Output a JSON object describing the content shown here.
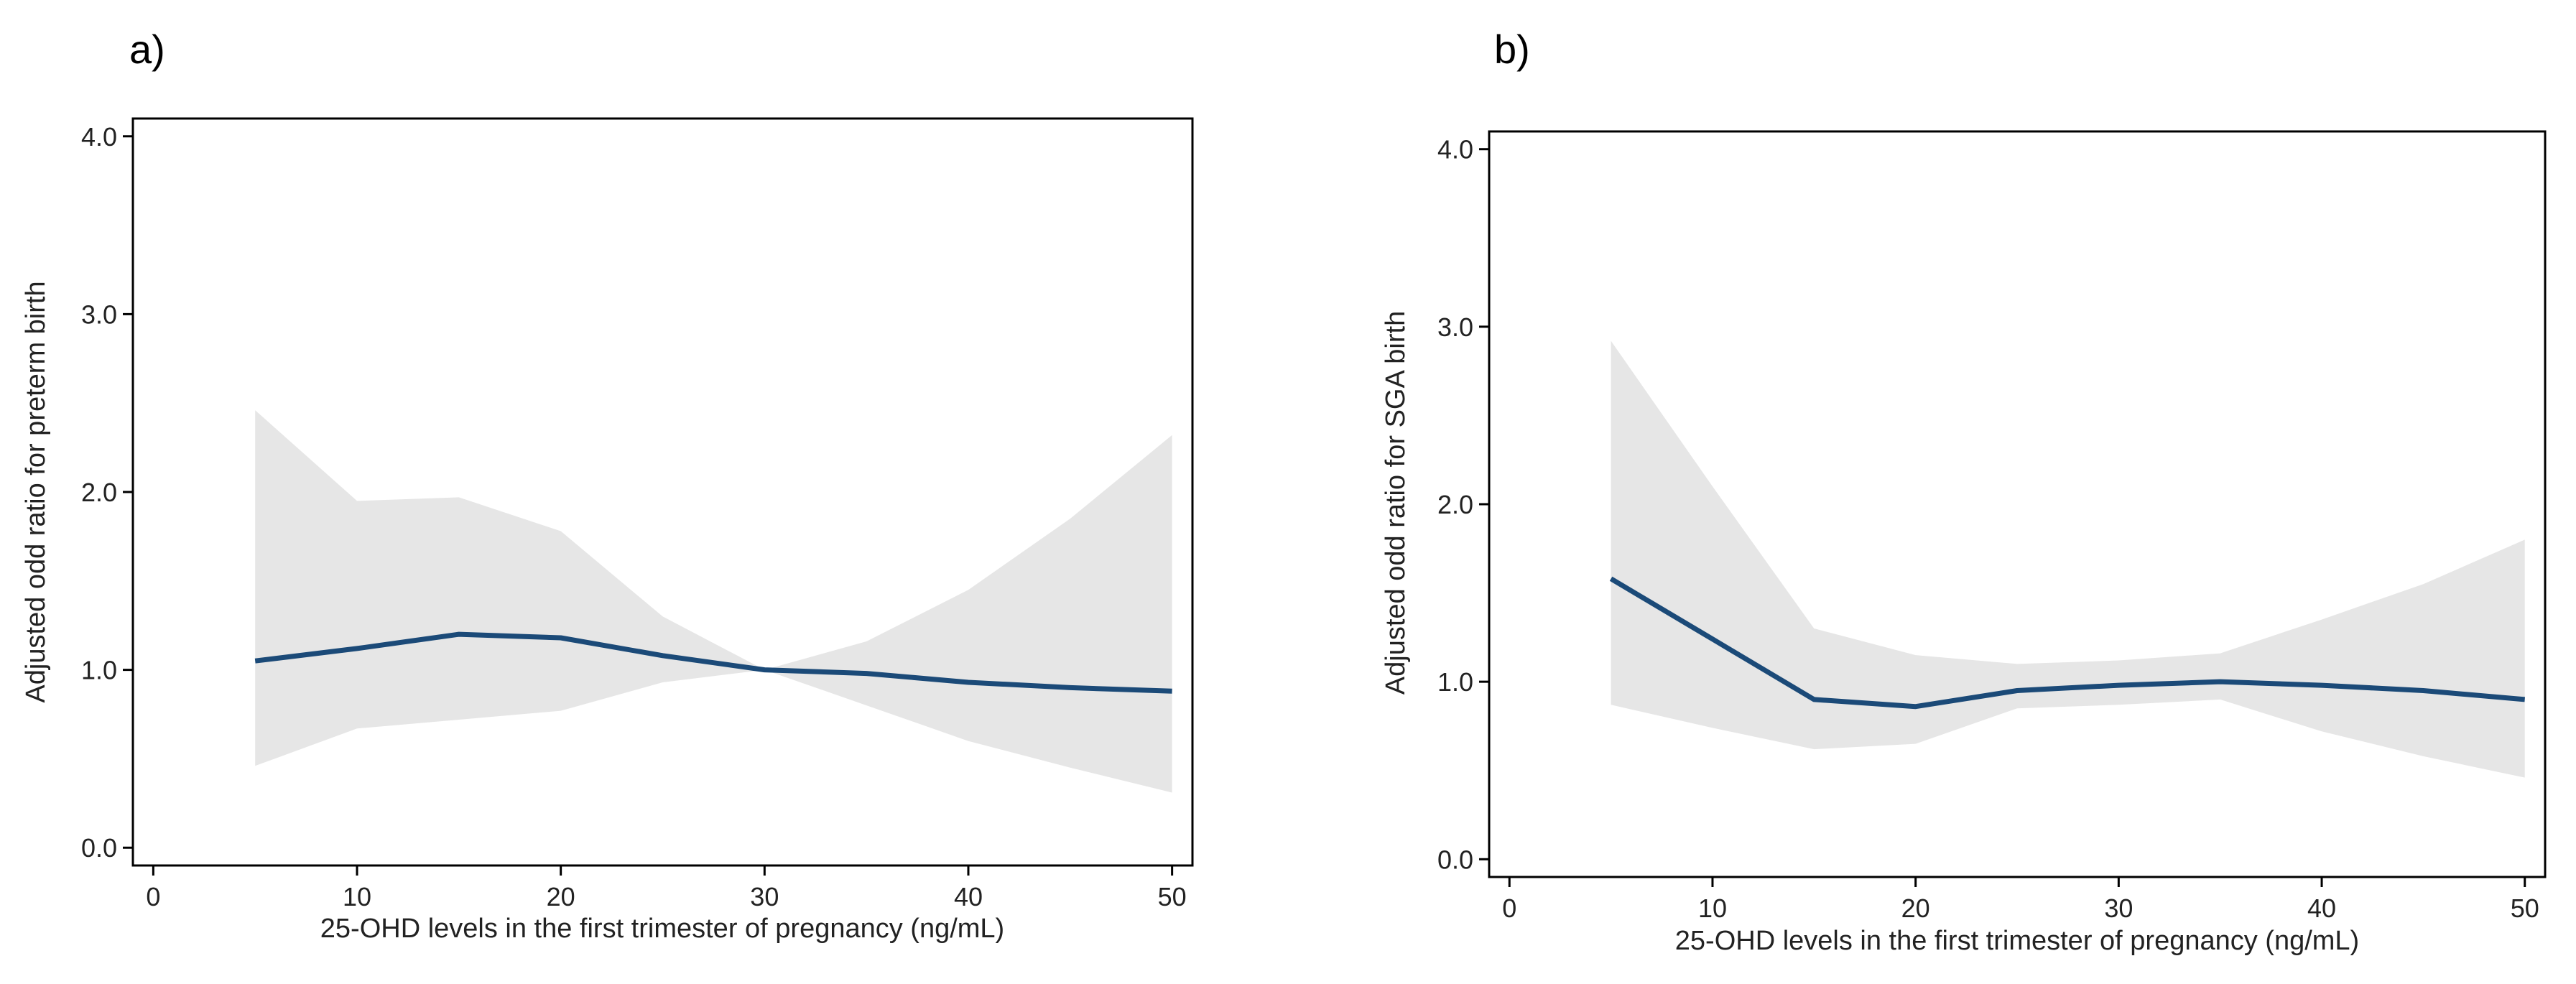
{
  "chart_data": [
    {
      "type": "line",
      "panel_label": "a)",
      "xlabel": "25-OHD levels in the first trimester of pregnancy (ng/mL)",
      "ylabel": "Adjusted odd ratio for preterm birth",
      "xlim": [
        -1,
        51
      ],
      "ylim": [
        -0.1,
        4.1
      ],
      "xticks": [
        0,
        10,
        20,
        30,
        40,
        50
      ],
      "xtick_labels": [
        "0",
        "10",
        "20",
        "30",
        "40",
        "50"
      ],
      "yticks": [
        0,
        1,
        2,
        3,
        4
      ],
      "ytick_labels": [
        "0.0",
        "1.0",
        "2.0",
        "3.0",
        "4.0"
      ],
      "grid": false,
      "colors": {
        "line": "#1b4a78",
        "band": "#e6e6e6"
      },
      "series": [
        {
          "x": [
            5,
            10,
            15,
            20,
            25,
            30,
            35,
            40,
            45,
            50
          ],
          "y": [
            1.05,
            1.12,
            1.2,
            1.18,
            1.08,
            1.0,
            0.98,
            0.93,
            0.9,
            0.88
          ],
          "lower": [
            0.46,
            0.67,
            0.72,
            0.77,
            0.93,
            1.0,
            0.8,
            0.6,
            0.45,
            0.31
          ],
          "upper": [
            2.46,
            1.95,
            1.97,
            1.78,
            1.3,
            1.0,
            1.16,
            1.45,
            1.85,
            2.32
          ]
        }
      ]
    },
    {
      "type": "line",
      "panel_label": "b)",
      "xlabel": "25-OHD levels in the first trimester of pregnancy (ng/mL)",
      "ylabel": "Adjusted odd ratio for SGA birth",
      "xlim": [
        -1,
        51
      ],
      "ylim": [
        -0.1,
        4.1
      ],
      "xticks": [
        0,
        10,
        20,
        30,
        40,
        50
      ],
      "xtick_labels": [
        "0",
        "10",
        "20",
        "30",
        "40",
        "50"
      ],
      "yticks": [
        0,
        1,
        2,
        3,
        4
      ],
      "ytick_labels": [
        "0.0",
        "1.0",
        "2.0",
        "3.0",
        "4.0"
      ],
      "grid": false,
      "colors": {
        "line": "#1b4a78",
        "band": "#e6e6e6"
      },
      "series": [
        {
          "x": [
            5,
            10,
            15,
            20,
            25,
            30,
            35,
            40,
            45,
            50
          ],
          "y": [
            1.58,
            1.24,
            0.9,
            0.86,
            0.95,
            0.98,
            1.0,
            0.98,
            0.95,
            0.9
          ],
          "lower": [
            0.87,
            0.74,
            0.62,
            0.65,
            0.85,
            0.87,
            0.9,
            0.72,
            0.58,
            0.46
          ],
          "upper": [
            2.92,
            2.1,
            1.3,
            1.15,
            1.1,
            1.12,
            1.16,
            1.35,
            1.55,
            1.8
          ]
        }
      ]
    }
  ]
}
